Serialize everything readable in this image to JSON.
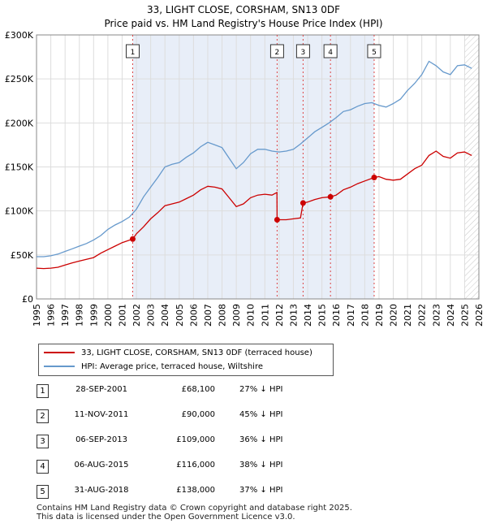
{
  "chart_data": {
    "type": "line",
    "title": "33, LIGHT CLOSE, CORSHAM, SN13 0DF",
    "subtitle": "Price paid vs. HM Land Registry's House Price Index (HPI)",
    "x_ticks": [
      "1995",
      "1996",
      "1997",
      "1998",
      "1999",
      "2000",
      "2001",
      "2002",
      "2003",
      "2004",
      "2005",
      "2006",
      "2007",
      "2008",
      "2009",
      "2010",
      "2011",
      "2012",
      "2013",
      "2014",
      "2015",
      "2016",
      "2017",
      "2018",
      "2019",
      "2020",
      "2021",
      "2022",
      "2023",
      "2024",
      "2025",
      "2026"
    ],
    "y_ticks": [
      "£0",
      "£50K",
      "£100K",
      "£150K",
      "£200K",
      "£250K",
      "£300K"
    ],
    "xlim": [
      1995,
      2026
    ],
    "ylim": [
      0,
      300000
    ],
    "colors": {
      "property": "#cc0000",
      "hpi": "#6699cc",
      "shade": "#e8eef8",
      "marker_line": "#dd4444"
    },
    "series": [
      {
        "name": "33, LIGHT CLOSE, CORSHAM, SN13 0DF (terraced house)",
        "x": [
          1995.0,
          1995.5,
          1996.0,
          1996.5,
          1997.0,
          1997.5,
          1998.0,
          1998.5,
          1999.0,
          1999.5,
          2000.0,
          2000.5,
          2001.0,
          2001.74,
          2002.0,
          2002.5,
          2003.0,
          2003.5,
          2004.0,
          2004.5,
          2005.0,
          2005.5,
          2006.0,
          2006.5,
          2007.0,
          2007.5,
          2008.0,
          2008.5,
          2009.0,
          2009.5,
          2010.0,
          2010.5,
          2011.0,
          2011.5,
          2011.85,
          2011.86,
          2012.5,
          2013.0,
          2013.5,
          2013.68,
          2014.0,
          2014.5,
          2015.0,
          2015.6,
          2016.0,
          2016.5,
          2017.0,
          2017.5,
          2018.0,
          2018.66,
          2019.0,
          2019.5,
          2020.0,
          2020.5,
          2021.0,
          2021.5,
          2022.0,
          2022.5,
          2023.0,
          2023.5,
          2024.0,
          2024.5,
          2025.0,
          2025.5
        ],
        "values": [
          35000,
          34500,
          35000,
          36000,
          38500,
          41000,
          43000,
          45000,
          47000,
          52000,
          56000,
          60000,
          64000,
          68100,
          74000,
          82000,
          91000,
          98000,
          106000,
          108000,
          110000,
          114000,
          118000,
          124000,
          128000,
          127000,
          125000,
          115000,
          105000,
          108000,
          115000,
          118000,
          119000,
          118000,
          121000,
          90000,
          90000,
          91000,
          92000,
          109000,
          110000,
          113000,
          115000,
          116000,
          118000,
          124000,
          127000,
          131000,
          134000,
          138000,
          139000,
          136000,
          135000,
          136000,
          142000,
          148000,
          152000,
          163000,
          168000,
          162000,
          160000,
          166000,
          167000,
          163000
        ]
      },
      {
        "name": "HPI: Average price, terraced house, Wiltshire",
        "x": [
          1995.0,
          1995.5,
          1996.0,
          1996.5,
          1997.0,
          1997.5,
          1998.0,
          1998.5,
          1999.0,
          1999.5,
          2000.0,
          2000.5,
          2001.0,
          2001.5,
          2002.0,
          2002.5,
          2003.0,
          2003.5,
          2004.0,
          2004.5,
          2005.0,
          2005.5,
          2006.0,
          2006.5,
          2007.0,
          2007.5,
          2008.0,
          2008.5,
          2009.0,
          2009.5,
          2010.0,
          2010.5,
          2011.0,
          2011.5,
          2012.0,
          2012.5,
          2013.0,
          2013.5,
          2014.0,
          2014.5,
          2015.0,
          2015.5,
          2016.0,
          2016.5,
          2017.0,
          2017.5,
          2018.0,
          2018.5,
          2019.0,
          2019.5,
          2020.0,
          2020.5,
          2021.0,
          2021.5,
          2022.0,
          2022.5,
          2023.0,
          2023.5,
          2024.0,
          2024.5,
          2025.0,
          2025.5
        ],
        "values": [
          48000,
          48000,
          49000,
          51000,
          54000,
          57000,
          60000,
          63000,
          67000,
          72000,
          79000,
          84000,
          88000,
          93000,
          102000,
          116000,
          127000,
          138000,
          150000,
          153000,
          155000,
          161000,
          166000,
          173000,
          178000,
          175000,
          172000,
          160000,
          148000,
          155000,
          165000,
          170000,
          170000,
          168000,
          167000,
          168000,
          170000,
          176000,
          183000,
          190000,
          195000,
          200000,
          206000,
          213000,
          215000,
          219000,
          222000,
          223000,
          220000,
          218000,
          222000,
          227000,
          237000,
          245000,
          255000,
          270000,
          265000,
          258000,
          255000,
          265000,
          266000,
          262000
        ]
      }
    ],
    "sales": [
      {
        "num": "1",
        "x": 2001.74,
        "value": 68100
      },
      {
        "num": "2",
        "x": 2011.86,
        "value": 90000
      },
      {
        "num": "3",
        "x": 2013.68,
        "value": 109000
      },
      {
        "num": "4",
        "x": 2015.6,
        "value": 116000
      },
      {
        "num": "5",
        "x": 2018.66,
        "value": 138000
      }
    ]
  },
  "legend": {
    "property_label": "33, LIGHT CLOSE, CORSHAM, SN13 0DF (terraced house)",
    "hpi_label": "HPI: Average price, terraced house, Wiltshire"
  },
  "table": [
    {
      "num": "1",
      "date": "28-SEP-2001",
      "price": "£68,100",
      "hpi": "27% ↓ HPI"
    },
    {
      "num": "2",
      "date": "11-NOV-2011",
      "price": "£90,000",
      "hpi": "45% ↓ HPI"
    },
    {
      "num": "3",
      "date": "06-SEP-2013",
      "price": "£109,000",
      "hpi": "36% ↓ HPI"
    },
    {
      "num": "4",
      "date": "06-AUG-2015",
      "price": "£116,000",
      "hpi": "38% ↓ HPI"
    },
    {
      "num": "5",
      "date": "31-AUG-2018",
      "price": "£138,000",
      "hpi": "37% ↓ HPI"
    }
  ],
  "footer": {
    "line1": "Contains HM Land Registry data © Crown copyright and database right 2025.",
    "line2": "This data is licensed under the Open Government Licence v3.0."
  }
}
